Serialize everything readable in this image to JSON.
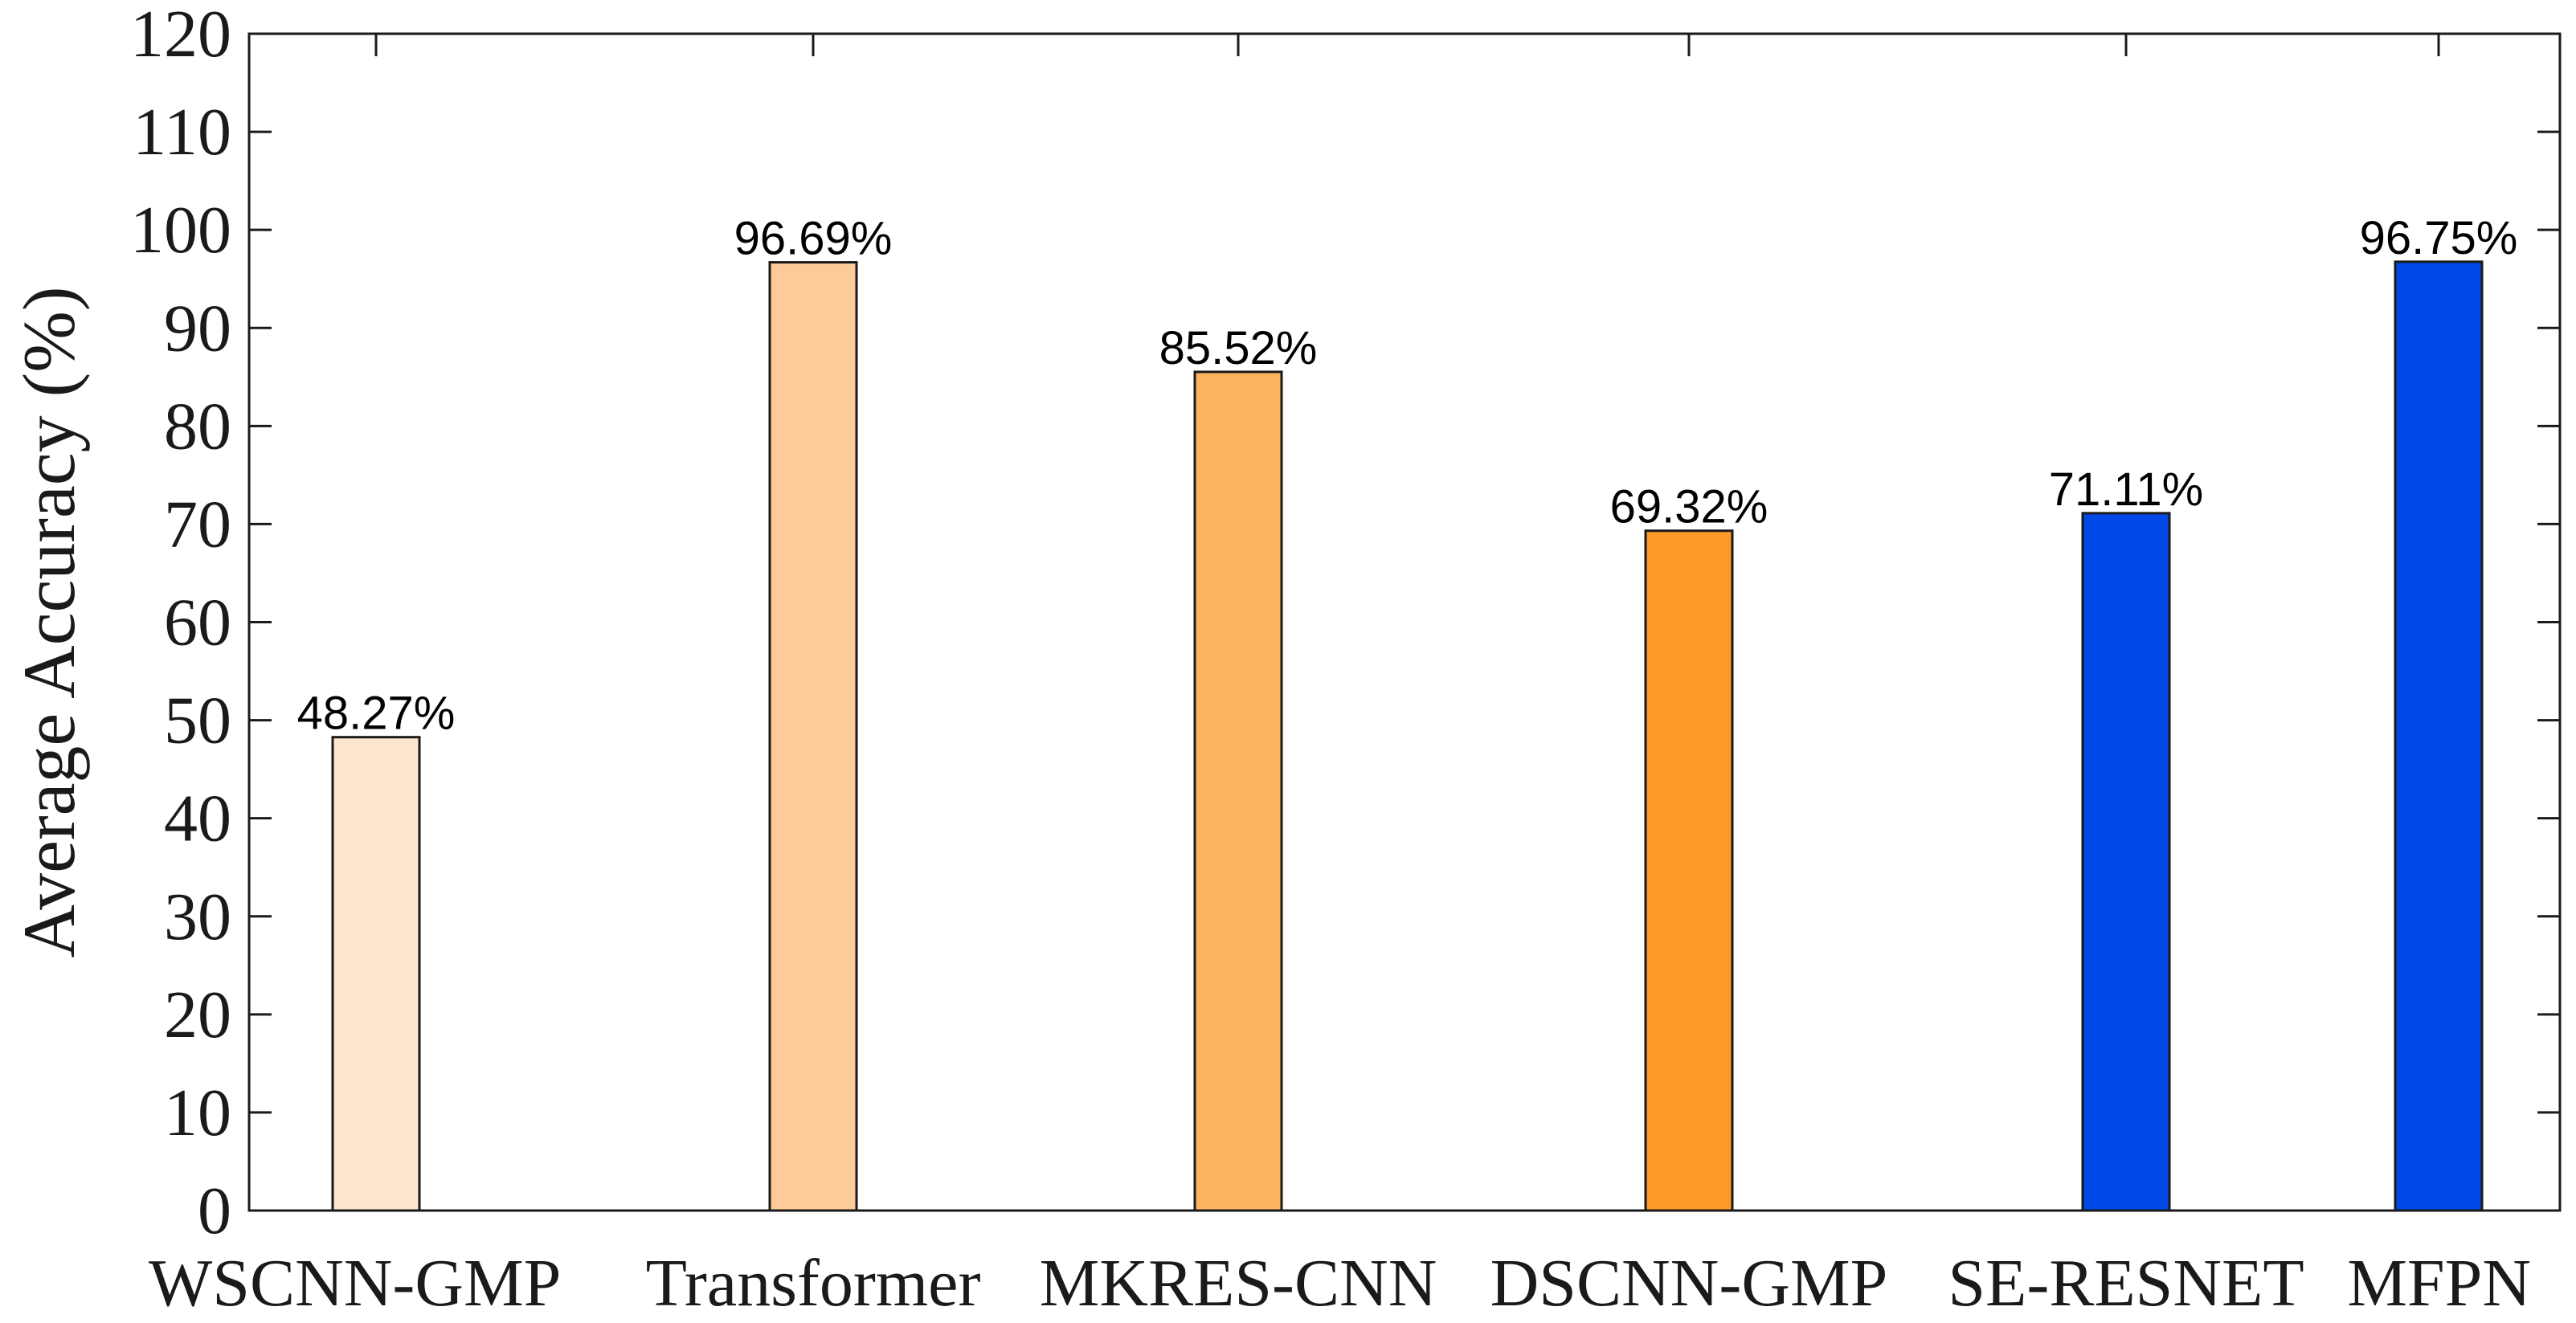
{
  "chart_data": {
    "type": "bar",
    "title": "",
    "xlabel": "",
    "ylabel": "Average Accuracy (%)",
    "ylim": [
      0,
      120
    ],
    "yticks": [
      0,
      10,
      20,
      30,
      40,
      50,
      60,
      70,
      80,
      90,
      100,
      110,
      120
    ],
    "grid": false,
    "legend": "none",
    "categories": [
      "WSCNN-GMP",
      "Transformer",
      "MKRES-CNN",
      "DSCNN-GMP",
      "SE-RESNET",
      "MFPN"
    ],
    "values": [
      48.27,
      96.69,
      85.52,
      69.32,
      71.11,
      96.75
    ],
    "data_labels": [
      "48.27%",
      "96.69%",
      "85.52%",
      "69.32%",
      "71.11%",
      "96.75%"
    ],
    "colors": [
      "#FEE6CE",
      "#FDCB97",
      "#FDB462",
      "#FE9A2A",
      "#0049E6",
      "#0049E6"
    ]
  }
}
